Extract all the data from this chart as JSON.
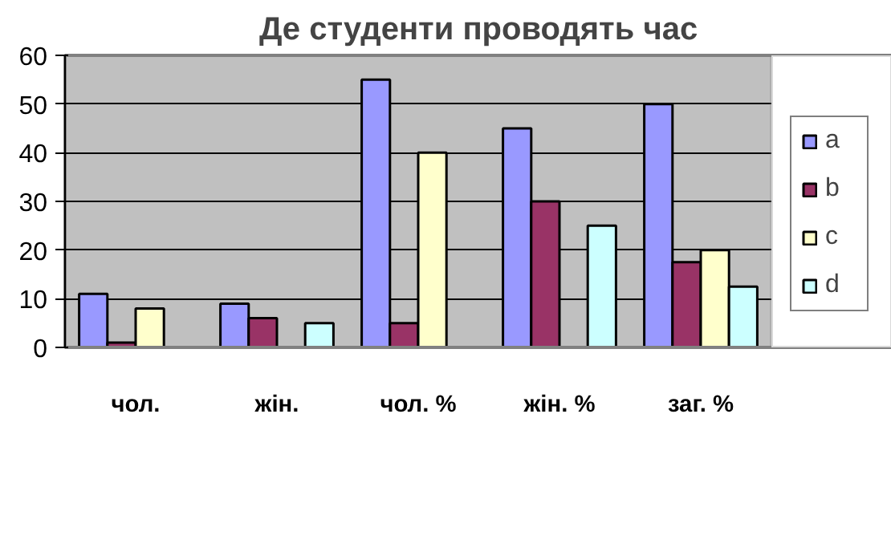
{
  "chart_data": {
    "type": "bar",
    "title": "Де студенти проводять час",
    "categories": [
      "чол.",
      "жін.",
      "чол. %",
      "жін. %",
      "заг. %"
    ],
    "series": [
      {
        "name": "a",
        "color": "#9999ff",
        "values": [
          11,
          9,
          55,
          45,
          50
        ]
      },
      {
        "name": "b",
        "color": "#993366",
        "values": [
          1,
          6,
          5,
          30,
          17.5
        ]
      },
      {
        "name": "c",
        "color": "#ffffcc",
        "values": [
          8,
          null,
          40,
          null,
          20
        ]
      },
      {
        "name": "d",
        "color": "#ccffff",
        "values": [
          null,
          5,
          null,
          25,
          12.5
        ]
      }
    ],
    "ylim": [
      0,
      60
    ],
    "yticks": [
      0,
      10,
      20,
      30,
      40,
      50,
      60
    ],
    "grid": "y",
    "legend": "right"
  }
}
